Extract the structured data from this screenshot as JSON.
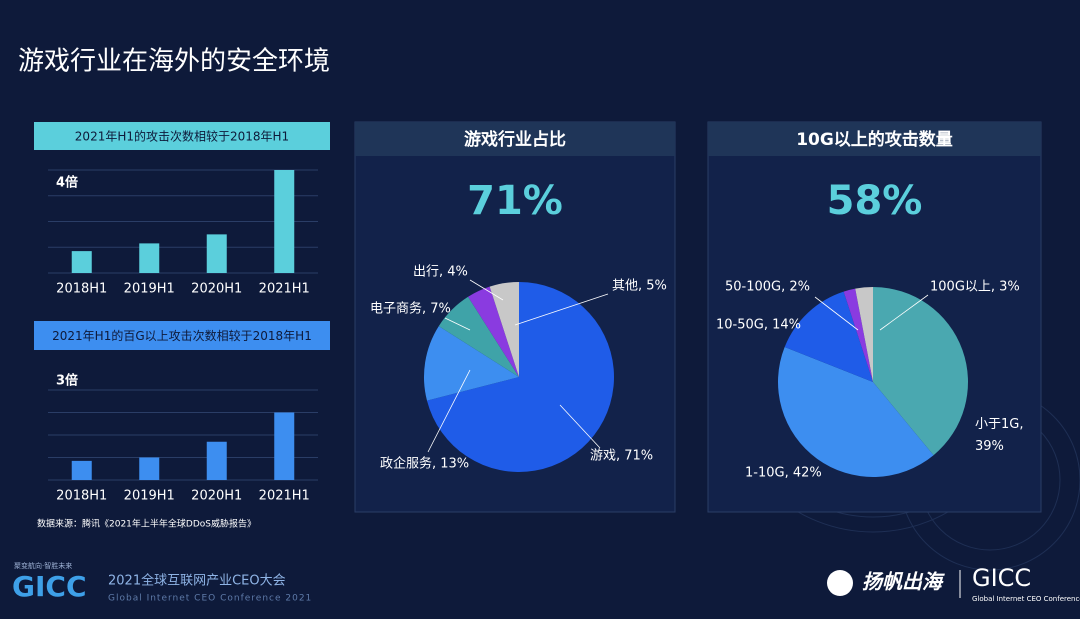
{
  "page": {
    "title": "游戏行业在海外的安全环境",
    "source": "数据来源：腾讯《2021年上半年全球DDoS威胁报告》",
    "footer_tagline": "聚变航向·智胜未来",
    "footer_logo": "GICC",
    "footer_event": "2021全球互联网产业CEO大会",
    "footer_event_en": "Global Internet CEO Conference 2021",
    "footer_brand": "扬帆出海",
    "footer_logo_right": "GICC",
    "footer_logo_right_en": "Global Internet CEO Conference"
  },
  "chart_data": [
    {
      "type": "bar",
      "title": "2021年H1的攻击次数相较于2018年H1",
      "annotation": "4倍",
      "categories": [
        "2018H1",
        "2019H1",
        "2020H1",
        "2021H1"
      ],
      "values": [
        0.85,
        1.15,
        1.5,
        4
      ],
      "color": "#5bcfdc",
      "ylim": [
        0,
        4
      ],
      "grid": true
    },
    {
      "type": "bar",
      "title": "2021年H1的百G以上攻击次数相较于2018年H1",
      "annotation": "3倍",
      "categories": [
        "2018H1",
        "2019H1",
        "2020H1",
        "2021H1"
      ],
      "values": [
        0.85,
        1,
        1.7,
        3
      ],
      "color": "#3d8ef0",
      "ylim": [
        0,
        4
      ],
      "grid": true
    },
    {
      "type": "pie",
      "title": "游戏行业占比",
      "headline": "71%",
      "values": [
        71,
        13,
        7,
        4,
        5
      ],
      "value_labels": [
        "游戏, 71%",
        "政企服务, 13%",
        "电子商务, 7%",
        "出行, 4%",
        "其他, 5%"
      ],
      "colors": [
        "#1f5ce8",
        "#3d8ef0",
        "#3fa3a8",
        "#8a3be0",
        "#c8c8c8"
      ]
    },
    {
      "type": "pie",
      "title": "10G以上的攻击数量",
      "headline": "58%",
      "values": [
        39,
        42,
        14,
        2,
        3
      ],
      "value_labels": [
        "小于1G, 39%",
        "1-10G, 42%",
        "10-50G, 14%",
        "50-100G, 2%",
        "100G以上, 3%"
      ],
      "colors": [
        "#4aa8b0",
        "#3d8ef0",
        "#1f5ce8",
        "#8a3be0",
        "#c8c8c8"
      ]
    }
  ]
}
